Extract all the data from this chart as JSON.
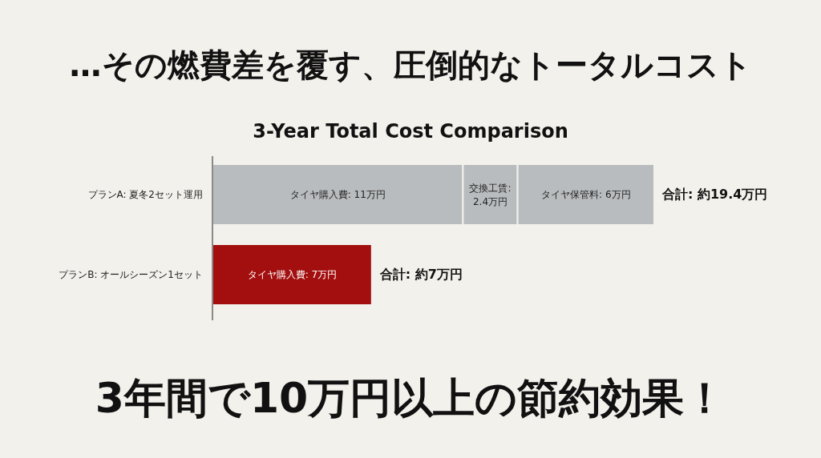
{
  "chart_data": {
    "type": "bar",
    "orientation": "horizontal",
    "stacked": true,
    "title": "…その燃費差を覆す、圧倒的なトータルコスト",
    "subtitle": "3-Year Total Cost Comparison",
    "categories": [
      "プランA: 夏冬2セット運用",
      "プランB: オールシーズン1セット"
    ],
    "series": [
      {
        "colors": [
          "#b9bcbe",
          "#a30f0f"
        ],
        "values": [
          11,
          7
        ],
        "value_labels": [
          "タイヤ購入費: 11万円",
          "タイヤ購入費: 7万円"
        ]
      },
      {
        "colors": [
          "#b9bcbe",
          null
        ],
        "values": [
          2.4,
          null
        ],
        "value_labels": [
          "交換工賃: 2.4万円",
          null
        ]
      },
      {
        "colors": [
          "#b9bcbe",
          null
        ],
        "values": [
          6,
          null
        ],
        "value_labels": [
          "タイヤ保管料: 6万円",
          null
        ]
      }
    ],
    "totals": [
      "合計: 約19.4万円",
      "合計: 約7万円"
    ],
    "annotations": [
      "3年間で10万円以上の節約効果！"
    ]
  }
}
